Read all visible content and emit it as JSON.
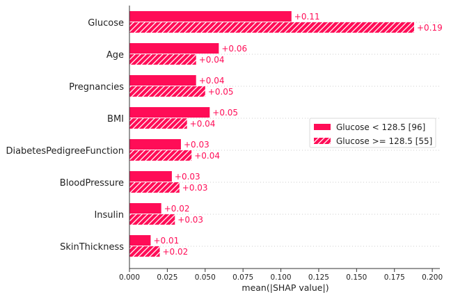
{
  "chart_data": {
    "type": "bar",
    "orientation": "horizontal",
    "categories": [
      "Glucose",
      "Age",
      "Pregnancies",
      "BMI",
      "DiabetesPedigreeFunction",
      "BloodPressure",
      "Insulin",
      "SkinThickness"
    ],
    "series": [
      {
        "name": "Glucose < 128.5 [96]",
        "values": [
          0.107,
          0.059,
          0.044,
          0.053,
          0.034,
          0.028,
          0.021,
          0.014
        ],
        "labels": [
          "+0.11",
          "+0.06",
          "+0.04",
          "+0.05",
          "+0.03",
          "+0.03",
          "+0.02",
          "+0.01"
        ],
        "pattern": "solid"
      },
      {
        "name": "Glucose >= 128.5 [55]",
        "values": [
          0.188,
          0.044,
          0.05,
          0.038,
          0.041,
          0.033,
          0.03,
          0.02
        ],
        "labels": [
          "+0.19",
          "+0.04",
          "+0.05",
          "+0.04",
          "+0.04",
          "+0.03",
          "+0.03",
          "+0.02"
        ],
        "pattern": "hatched"
      }
    ],
    "xlabel": "mean(|SHAP value|)",
    "xlim": [
      0,
      0.205
    ],
    "xticks": [
      0,
      0.025,
      0.05,
      0.075,
      0.1,
      0.125,
      0.15,
      0.175,
      0.2
    ],
    "xtick_labels": [
      "0.000",
      "0.025",
      "0.050",
      "0.075",
      "0.100",
      "0.125",
      "0.150",
      "0.175",
      "0.200"
    ],
    "grid": "horizontal dotted",
    "legend_position": "center-right",
    "colors": {
      "bar": "#ff0d57",
      "hatch": "#ffffff",
      "text": "#ff0d57"
    }
  }
}
